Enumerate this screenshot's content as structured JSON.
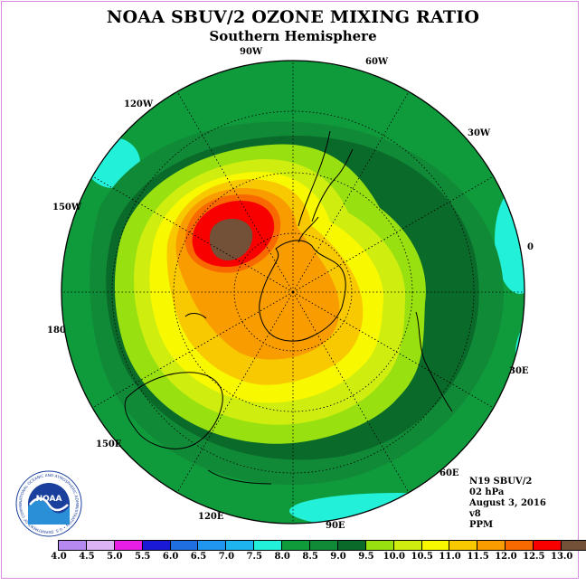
{
  "title": "NOAA SBUV/2 OZONE MIXING RATIO",
  "subtitle": "Southern Hemisphere",
  "longitude_labels": [
    "90W",
    "60W",
    "30W",
    "0",
    "30E",
    "60E",
    "90E",
    "120E",
    "150E",
    "180",
    "150W",
    "120W"
  ],
  "info": {
    "satellite": "N19 SBUV/2",
    "level": "02 hPa",
    "date": "August 3, 2016",
    "version": "v8",
    "units": "PPM"
  },
  "colorbar": {
    "ticks": [
      "4.0",
      "4.5",
      "5.0",
      "5.5",
      "6.0",
      "6.5",
      "7.0",
      "7.5",
      "8.0",
      "8.5",
      "9.0",
      "9.5",
      "10.0",
      "10.5",
      "11.0",
      "11.5",
      "12.0",
      "12.5",
      "13.0"
    ],
    "colors": [
      "#b589ef",
      "#dcb4f5",
      "#e61ee6",
      "#1a1ad6",
      "#1f6fe0",
      "#2196f0",
      "#1eb4f0",
      "#22f0d8",
      "#0f9a3c",
      "#118a38",
      "#0a6a2a",
      "#98e010",
      "#cfee10",
      "#f8f800",
      "#f8c800",
      "#f89c00",
      "#f86a00",
      "#f80000",
      "#735038"
    ]
  },
  "map_colors": {
    "ring_7_5": "#22f0d8",
    "ring_8_0": "#0f9a3c",
    "ring_8_5": "#118a38",
    "ring_9_0": "#0a6a2a",
    "ring_9_5": "#98e010",
    "ring_10_0": "#cfee10",
    "ring_10_5": "#f8f800",
    "ring_11_0": "#f8c800",
    "ring_11_5": "#f89c00",
    "ring_12_0": "#f86a00",
    "ring_12_5": "#f80000",
    "ring_13_0": "#735038"
  },
  "logo": {
    "text": "NOAA",
    "ring_text": "NATIONAL OCEANIC AND ATMOSPHERIC ADMINISTRATION",
    "bottom_text": "U.S. DEPARTMENT OF COMMERCE"
  }
}
